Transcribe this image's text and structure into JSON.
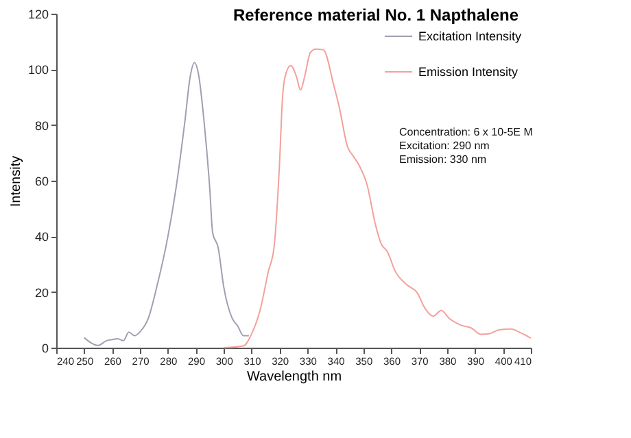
{
  "chart_data": {
    "type": "line",
    "title": "Reference material No. 1  Napthalene",
    "xlabel": "Wavelength nm",
    "ylabel": "Intensity",
    "xlim": [
      240,
      410
    ],
    "xticks": [
      240,
      250,
      260,
      270,
      280,
      290,
      300,
      310,
      320,
      330,
      340,
      350,
      360,
      370,
      380,
      390,
      400,
      410
    ],
    "ylim": [
      0,
      120
    ],
    "yticks": [
      0,
      20,
      40,
      60,
      80,
      100,
      120
    ],
    "grid": false,
    "legend": "top right",
    "marker": "none",
    "line_style": "solid",
    "annotations": [
      "Concentration: 6 x 10-5E M",
      "Excitation: 290 nm",
      "Emission: 330 nm"
    ],
    "series": [
      {
        "name": "Excitation Intensity",
        "color": "#a0a0b0",
        "x": [
          250,
          255,
          258,
          260,
          262,
          264,
          266,
          268,
          270,
          273,
          276,
          280,
          283,
          286,
          288,
          289.5,
          291,
          293,
          295,
          296,
          298,
          300,
          303,
          305,
          307,
          309
        ],
        "values": [
          3.6,
          0.8,
          2.5,
          2.9,
          3.2,
          2.5,
          5.6,
          4.3,
          5.7,
          10.6,
          21.8,
          40,
          58,
          80.7,
          97.5,
          102.4,
          98,
          80.7,
          57,
          41.5,
          35.9,
          21.8,
          10.6,
          7.8,
          4.3,
          4.3
        ]
      },
      {
        "name": "Emission Intensity",
        "color": "#f4a09a",
        "x": [
          300,
          307,
          310,
          313,
          316,
          318,
          320,
          321,
          322,
          324,
          326,
          327.5,
          329,
          331,
          333,
          335.7,
          339.3,
          341.4,
          344.3,
          346.4,
          348.6,
          351.4,
          354.3,
          356.4,
          358.6,
          361.4,
          365.7,
          369.3,
          372.1,
          375,
          377.9,
          380.7,
          385,
          388.6,
          392.1,
          395,
          398.6,
          402.9,
          406.4,
          410
        ],
        "values": [
          0,
          0.6,
          5,
          13.4,
          27.5,
          36,
          66.7,
          89,
          97.5,
          101.4,
          97.5,
          92.6,
          97.5,
          106,
          107.3,
          107,
          94.7,
          86.3,
          72.3,
          68.8,
          65.3,
          58.3,
          44.3,
          37.3,
          34.5,
          27.5,
          22.5,
          19.7,
          14.1,
          11.3,
          13.4,
          10.6,
          8.1,
          7.1,
          4.8,
          5,
          6.4,
          6.7,
          5.3,
          3.4
        ]
      }
    ]
  }
}
